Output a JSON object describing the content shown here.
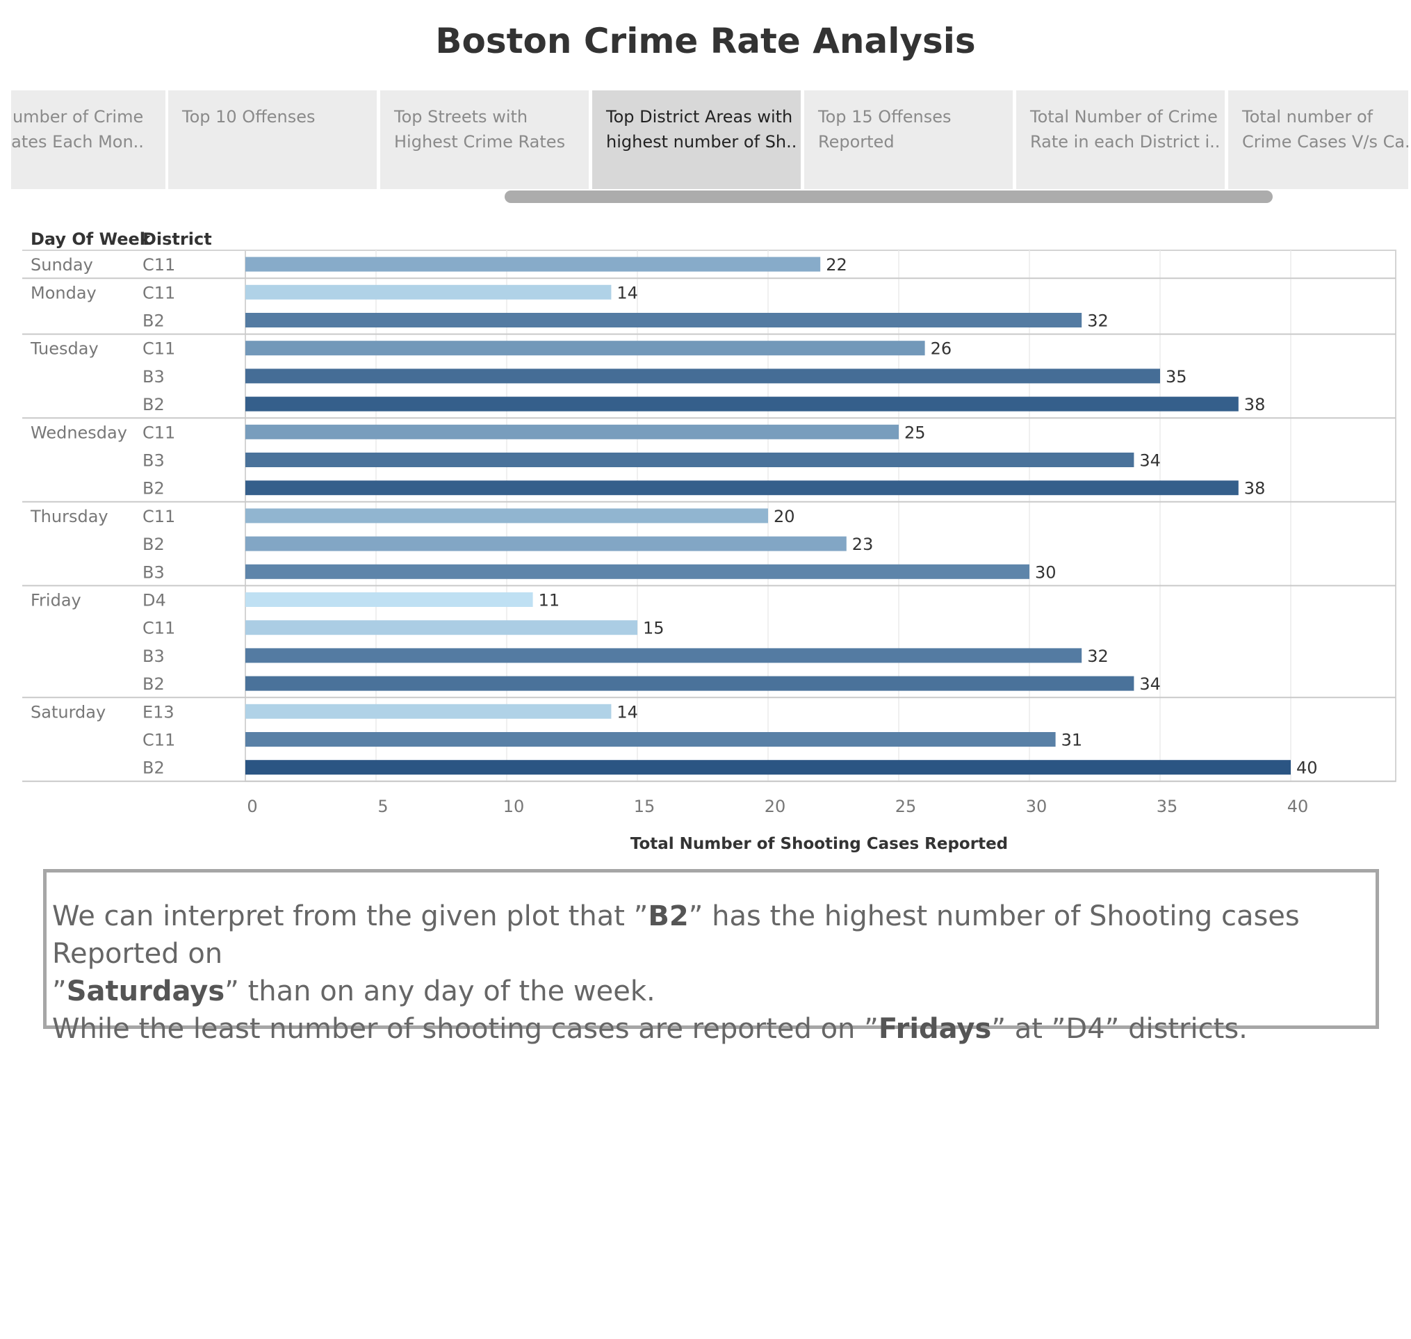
{
  "title": "Boston Crime Rate Analysis",
  "tabs": [
    {
      "line1": "Number of Crime",
      "line2": "Rates Each Mon..",
      "active": false
    },
    {
      "line1": "Top 10 Offenses",
      "line2": "",
      "active": false
    },
    {
      "line1": "Top Streets with",
      "line2": "Highest Crime Rates",
      "active": false
    },
    {
      "line1": "Top District Areas with",
      "line2": "highest number of Sh..",
      "active": true
    },
    {
      "line1": "Top 15 Offenses",
      "line2": "Reported",
      "active": false
    },
    {
      "line1": "Total Number of Crime",
      "line2": "Rate in each District i..",
      "active": false
    },
    {
      "line1": "Total number of",
      "line2": "Crime Cases V/s Ca..",
      "active": false
    }
  ],
  "table_headers": {
    "day": "Day Of Week",
    "district": "District"
  },
  "chart_data": {
    "type": "bar",
    "orientation": "horizontal",
    "xlabel": "Total Number of Shooting Cases Reported",
    "xlim": [
      0,
      44
    ],
    "xticks": [
      0,
      5,
      10,
      15,
      20,
      25,
      30,
      35,
      40
    ],
    "grid": true,
    "groups": [
      {
        "day": "Sunday",
        "rows": [
          {
            "district": "C11",
            "value": 22
          }
        ]
      },
      {
        "day": "Monday",
        "rows": [
          {
            "district": "C11",
            "value": 14
          },
          {
            "district": "B2",
            "value": 32
          }
        ]
      },
      {
        "day": "Tuesday",
        "rows": [
          {
            "district": "C11",
            "value": 26
          },
          {
            "district": "B3",
            "value": 35
          },
          {
            "district": "B2",
            "value": 38
          }
        ]
      },
      {
        "day": "Wednesday",
        "rows": [
          {
            "district": "C11",
            "value": 25
          },
          {
            "district": "B3",
            "value": 34
          },
          {
            "district": "B2",
            "value": 38
          }
        ]
      },
      {
        "day": "Thursday",
        "rows": [
          {
            "district": "C11",
            "value": 20
          },
          {
            "district": "B2",
            "value": 23
          },
          {
            "district": "B3",
            "value": 30
          }
        ]
      },
      {
        "day": "Friday",
        "rows": [
          {
            "district": "D4",
            "value": 11
          },
          {
            "district": "C11",
            "value": 15
          },
          {
            "district": "B3",
            "value": 32
          },
          {
            "district": "B2",
            "value": 34
          }
        ]
      },
      {
        "day": "Saturday",
        "rows": [
          {
            "district": "E13",
            "value": 14
          },
          {
            "district": "C11",
            "value": 31
          },
          {
            "district": "B2",
            "value": 40
          }
        ]
      }
    ],
    "color_scale": {
      "low": "#bfe0f3",
      "high": "#2b5583"
    }
  },
  "note": {
    "l1_a": "We can interpret from the given plot that ”",
    "l1_b": "B2",
    "l1_c": "” has the highest number of Shooting cases Reported on",
    "l2_a": "”",
    "l2_b": "Saturdays",
    "l2_c": "” than on any day of the week.",
    "l3_a": "While the least number of shooting cases are reported on ”",
    "l3_b": "Fridays",
    "l3_c": "” at ”D4” districts."
  }
}
